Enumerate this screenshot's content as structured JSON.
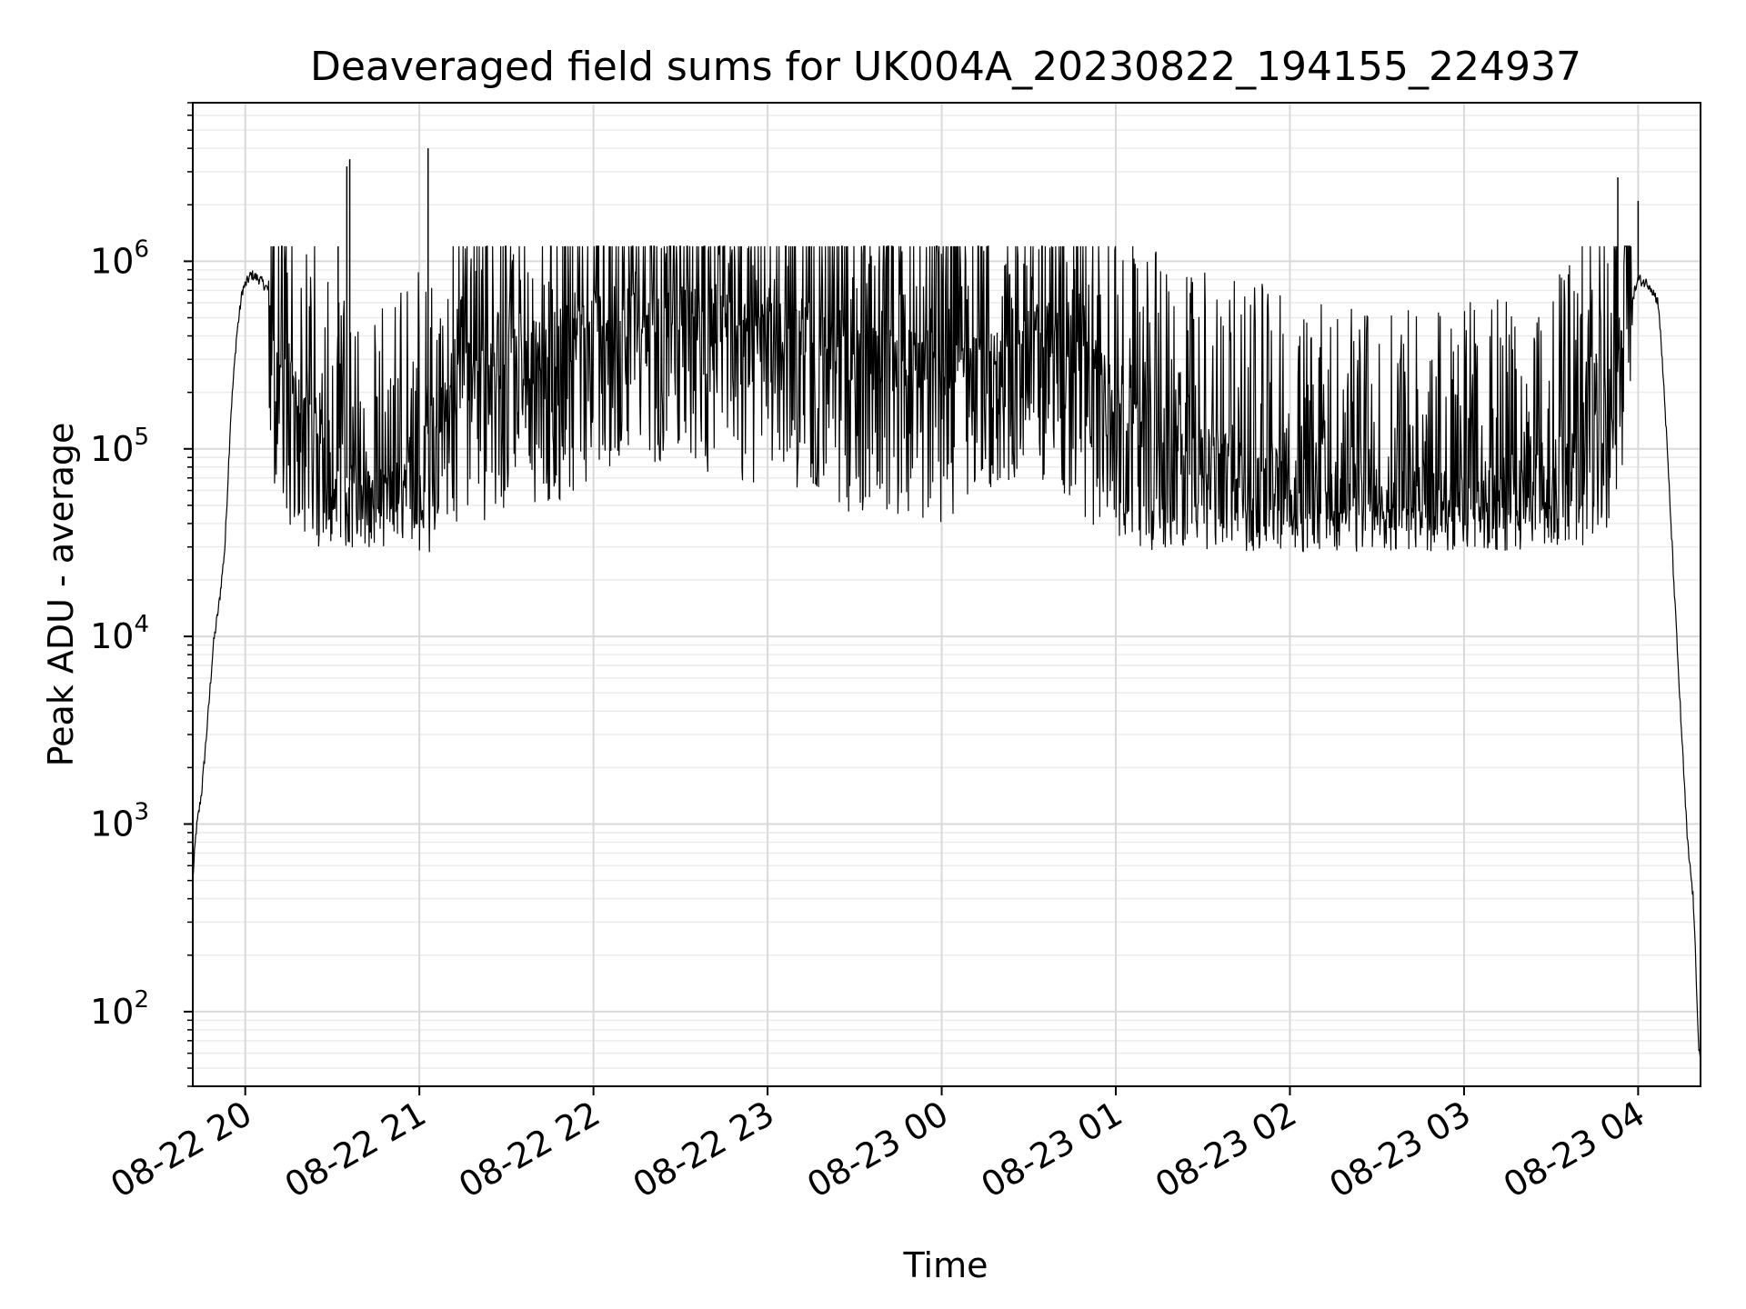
{
  "chart_data": {
    "type": "line",
    "title": "Deaveraged field sums for UK004A_20230822_194155_224937",
    "xlabel": "Time",
    "ylabel": "Peak ADU - average",
    "yscale": "log",
    "ylim": [
      40,
      7000000
    ],
    "xlim": [
      "2023-08-22 19:41:55",
      "2023-08-23 04:21:30"
    ],
    "grid": "major and minor",
    "line_color": "#000000",
    "x_ticks": [
      "08-22 20",
      "08-22 21",
      "08-22 22",
      "08-22 23",
      "08-23 00",
      "08-23 01",
      "08-23 02",
      "08-23 03",
      "08-23 04"
    ],
    "y_ticks": [
      {
        "base": "10",
        "exp": "2"
      },
      {
        "base": "10",
        "exp": "3"
      },
      {
        "base": "10",
        "exp": "4"
      },
      {
        "base": "10",
        "exp": "5"
      },
      {
        "base": "10",
        "exp": "6"
      }
    ],
    "series": [
      {
        "x": [
          "2023-08-22 19:41:55",
          "2023-08-22 19:43:00",
          "2023-08-22 19:45:00",
          "2023-08-22 19:47:00",
          "2023-08-22 19:49:00",
          "2023-08-22 19:51:00",
          "2023-08-22 19:53:00",
          "2023-08-22 19:55:00",
          "2023-08-22 19:57:00",
          "2023-08-22 19:59:00",
          "2023-08-22 20:02:00",
          "2023-08-22 20:05:00",
          "2023-08-22 20:08:00",
          "2023-08-22 20:10:00",
          "2023-08-22 20:15:00",
          "2023-08-22 20:20:00",
          "2023-08-22 20:25:00",
          "2023-08-22 20:30:00",
          "2023-08-22 20:35:00",
          "2023-08-22 20:40:00",
          "2023-08-22 20:45:00",
          "2023-08-22 20:50:00",
          "2023-08-22 21:00:00",
          "2023-08-22 21:15:00",
          "2023-08-22 21:30:00",
          "2023-08-22 21:45:00",
          "2023-08-22 22:00:00",
          "2023-08-22 22:15:00",
          "2023-08-22 22:30:00",
          "2023-08-22 22:45:00",
          "2023-08-22 23:00:00",
          "2023-08-22 23:15:00",
          "2023-08-22 23:30:00",
          "2023-08-22 23:45:00",
          "2023-08-23 00:00:00",
          "2023-08-23 00:15:00",
          "2023-08-23 00:30:00",
          "2023-08-23 00:45:00",
          "2023-08-23 01:00:00",
          "2023-08-23 01:15:00",
          "2023-08-23 01:30:00",
          "2023-08-23 01:45:00",
          "2023-08-23 02:00:00",
          "2023-08-23 02:15:00",
          "2023-08-23 02:30:00",
          "2023-08-23 02:45:00",
          "2023-08-23 03:00:00",
          "2023-08-23 03:15:00",
          "2023-08-23 03:25:00",
          "2023-08-23 03:35:00",
          "2023-08-23 03:45:00",
          "2023-08-23 03:52:00",
          "2023-08-23 03:56:00",
          "2023-08-23 04:00:00",
          "2023-08-23 04:04:00",
          "2023-08-23 04:07:00",
          "2023-08-23 04:09:00",
          "2023-08-23 04:11:00",
          "2023-08-23 04:13:00",
          "2023-08-23 04:15:00",
          "2023-08-23 04:17:00",
          "2023-08-23 04:19:00",
          "2023-08-23 04:21:00"
        ],
        "values": [
          500,
          900,
          1500,
          3500,
          9000,
          15000,
          30000,
          150000,
          400000,
          700000,
          850000,
          800000,
          700000,
          400000,
          250000,
          180000,
          120000,
          80000,
          70000,
          60000,
          55000,
          60000,
          100000,
          250000,
          300000,
          350000,
          500000,
          600000,
          550000,
          500000,
          400000,
          450000,
          300000,
          300000,
          280000,
          400000,
          500000,
          350000,
          200000,
          120000,
          90000,
          80000,
          70000,
          60000,
          55000,
          55000,
          60000,
          65000,
          70000,
          90000,
          180000,
          300000,
          500000,
          800000,
          750000,
          600000,
          200000,
          50000,
          12000,
          3000,
          800,
          400,
          60
        ]
      }
    ],
    "spikes": [
      {
        "x": "2023-08-22 20:32:00",
        "value": 1200000
      },
      {
        "x": "2023-08-22 20:35:00",
        "value": 3200000
      },
      {
        "x": "2023-08-22 20:36:00",
        "value": 3500000
      },
      {
        "x": "2023-08-22 21:03:00",
        "value": 4000000
      },
      {
        "x": "2023-08-23 03:53:00",
        "value": 2800000
      },
      {
        "x": "2023-08-23 04:00:00",
        "value": 2100000
      }
    ]
  }
}
